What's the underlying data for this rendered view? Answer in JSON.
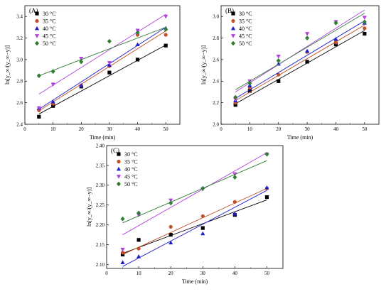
{
  "chart_data": [
    {
      "type": "scatter",
      "panel_label": "(A)",
      "xlabel": "Time (min)",
      "ylabel": "ln[y_∞/(y_∞−y)]",
      "xlim": [
        0,
        55
      ],
      "ylim": [
        2.4,
        3.5
      ],
      "xticks": [
        0,
        10,
        20,
        30,
        40,
        50
      ],
      "yticks": [
        2.4,
        2.6,
        2.8,
        3.0,
        3.2,
        3.4
      ],
      "ytick_decimals": 1,
      "legend_position": "top-left",
      "series": [
        {
          "name": "30 °C",
          "color": "#000000",
          "marker": "square",
          "x": [
            5,
            10,
            20,
            30,
            40,
            50
          ],
          "y": [
            2.47,
            2.57,
            2.75,
            2.88,
            3.0,
            3.13
          ],
          "fit": [
            2.495,
            3.135
          ]
        },
        {
          "name": "35 °C",
          "color": "#c0502a",
          "marker": "circle",
          "x": [
            5,
            10,
            20,
            30,
            40,
            50
          ],
          "y": [
            2.53,
            2.59,
            2.76,
            2.94,
            3.23,
            3.23
          ],
          "fit": [
            2.525,
            3.265
          ]
        },
        {
          "name": "40 °C",
          "color": "#2020d0",
          "marker": "triangle-up",
          "x": [
            5,
            10,
            20,
            30,
            40,
            50
          ],
          "y": [
            2.55,
            2.61,
            2.76,
            2.95,
            3.14,
            3.29
          ],
          "fit": [
            2.54,
            3.3
          ]
        },
        {
          "name": "45 °C",
          "color": "#b040e0",
          "marker": "triangle-down",
          "x": [
            5,
            10,
            20,
            30,
            40,
            50
          ],
          "y": [
            2.55,
            2.77,
            3.01,
            2.97,
            3.27,
            3.4
          ],
          "fit": [
            2.68,
            3.42
          ]
        },
        {
          "name": "50 °C",
          "color": "#2e7d32",
          "marker": "diamond",
          "x": [
            5,
            10,
            20,
            30,
            40,
            50
          ],
          "y": [
            2.85,
            2.89,
            2.98,
            3.17,
            3.25,
            3.28
          ],
          "fit": [
            2.85,
            3.3
          ]
        }
      ]
    },
    {
      "type": "scatter",
      "panel_label": "(B)",
      "xlabel": "Time (min)",
      "ylabel": "ln[y_∞/(y_∞−y)]",
      "xlim": [
        0,
        55
      ],
      "ylim": [
        2.0,
        3.1
      ],
      "xticks": [
        0,
        10,
        20,
        30,
        40,
        50
      ],
      "yticks": [
        2.0,
        2.2,
        2.4,
        2.6,
        2.8,
        3.0
      ],
      "ytick_decimals": 1,
      "legend_position": "top-left",
      "series": [
        {
          "name": "30 °C",
          "color": "#000000",
          "marker": "square",
          "x": [
            5,
            10,
            20,
            30,
            40,
            50
          ],
          "y": [
            2.18,
            2.31,
            2.4,
            2.58,
            2.74,
            2.84
          ],
          "fit": [
            2.19,
            2.87
          ]
        },
        {
          "name": "35 °C",
          "color": "#c0502a",
          "marker": "circle",
          "x": [
            5,
            10,
            20,
            30,
            40,
            50
          ],
          "y": [
            2.2,
            2.34,
            2.46,
            2.67,
            2.76,
            2.89
          ],
          "fit": [
            2.22,
            2.92
          ]
        },
        {
          "name": "40 °C",
          "color": "#2020d0",
          "marker": "triangle-up",
          "x": [
            5,
            10,
            20,
            30,
            40,
            50
          ],
          "y": [
            2.22,
            2.36,
            2.56,
            2.68,
            2.79,
            2.94
          ],
          "fit": [
            2.24,
            2.96
          ]
        },
        {
          "name": "45 °C",
          "color": "#b040e0",
          "marker": "triangle-down",
          "x": [
            5,
            10,
            20,
            30,
            40,
            50
          ],
          "y": [
            2.23,
            2.4,
            2.63,
            2.84,
            2.95,
            2.99
          ],
          "fit": [
            2.3,
            3.06
          ]
        },
        {
          "name": "50 °C",
          "color": "#2e7d32",
          "marker": "diamond",
          "x": [
            5,
            10,
            20,
            30,
            40,
            50
          ],
          "y": [
            2.25,
            2.38,
            2.59,
            2.8,
            2.94,
            2.95
          ],
          "fit": [
            2.32,
            3.03
          ]
        }
      ]
    },
    {
      "type": "scatter",
      "panel_label": "(C)",
      "xlabel": "Time (min)",
      "ylabel": "ln[y_∞/(y_∞−y)]",
      "xlim": [
        0,
        55
      ],
      "ylim": [
        2.09,
        2.4
      ],
      "xticks": [
        0,
        10,
        20,
        30,
        40,
        50
      ],
      "yticks": [
        2.1,
        2.15,
        2.2,
        2.25,
        2.3,
        2.35,
        2.4
      ],
      "ytick_decimals": 2,
      "legend_position": "top-left",
      "series": [
        {
          "name": "30 °C",
          "color": "#000000",
          "marker": "square",
          "x": [
            5,
            10,
            20,
            30,
            40,
            50
          ],
          "y": [
            2.125,
            2.162,
            2.175,
            2.192,
            2.225,
            2.27
          ],
          "fit": [
            2.128,
            2.263
          ]
        },
        {
          "name": "35 °C",
          "color": "#c0502a",
          "marker": "circle",
          "x": [
            5,
            10,
            20,
            30,
            40,
            50
          ],
          "y": [
            2.13,
            2.14,
            2.195,
            2.222,
            2.258,
            2.292
          ],
          "fit": [
            2.125,
            2.292
          ]
        },
        {
          "name": "40 °C",
          "color": "#2020d0",
          "marker": "triangle-up",
          "x": [
            5,
            10,
            20,
            30,
            40,
            50
          ],
          "y": [
            2.105,
            2.12,
            2.155,
            2.178,
            2.228,
            2.294
          ],
          "fit": [
            2.095,
            2.287
          ]
        },
        {
          "name": "45 °C",
          "color": "#b040e0",
          "marker": "triangle-down",
          "x": [
            5,
            10,
            20,
            30,
            40,
            50
          ],
          "y": [
            2.138,
            2.225,
            2.262,
            2.29,
            2.328,
            2.378
          ],
          "fit": [
            2.175,
            2.382
          ]
        },
        {
          "name": "50 °C",
          "color": "#2e7d32",
          "marker": "diamond",
          "x": [
            5,
            10,
            20,
            30,
            40,
            50
          ],
          "y": [
            2.215,
            2.23,
            2.255,
            2.292,
            2.32,
            2.378
          ],
          "fit": [
            2.205,
            2.362
          ]
        }
      ]
    }
  ]
}
